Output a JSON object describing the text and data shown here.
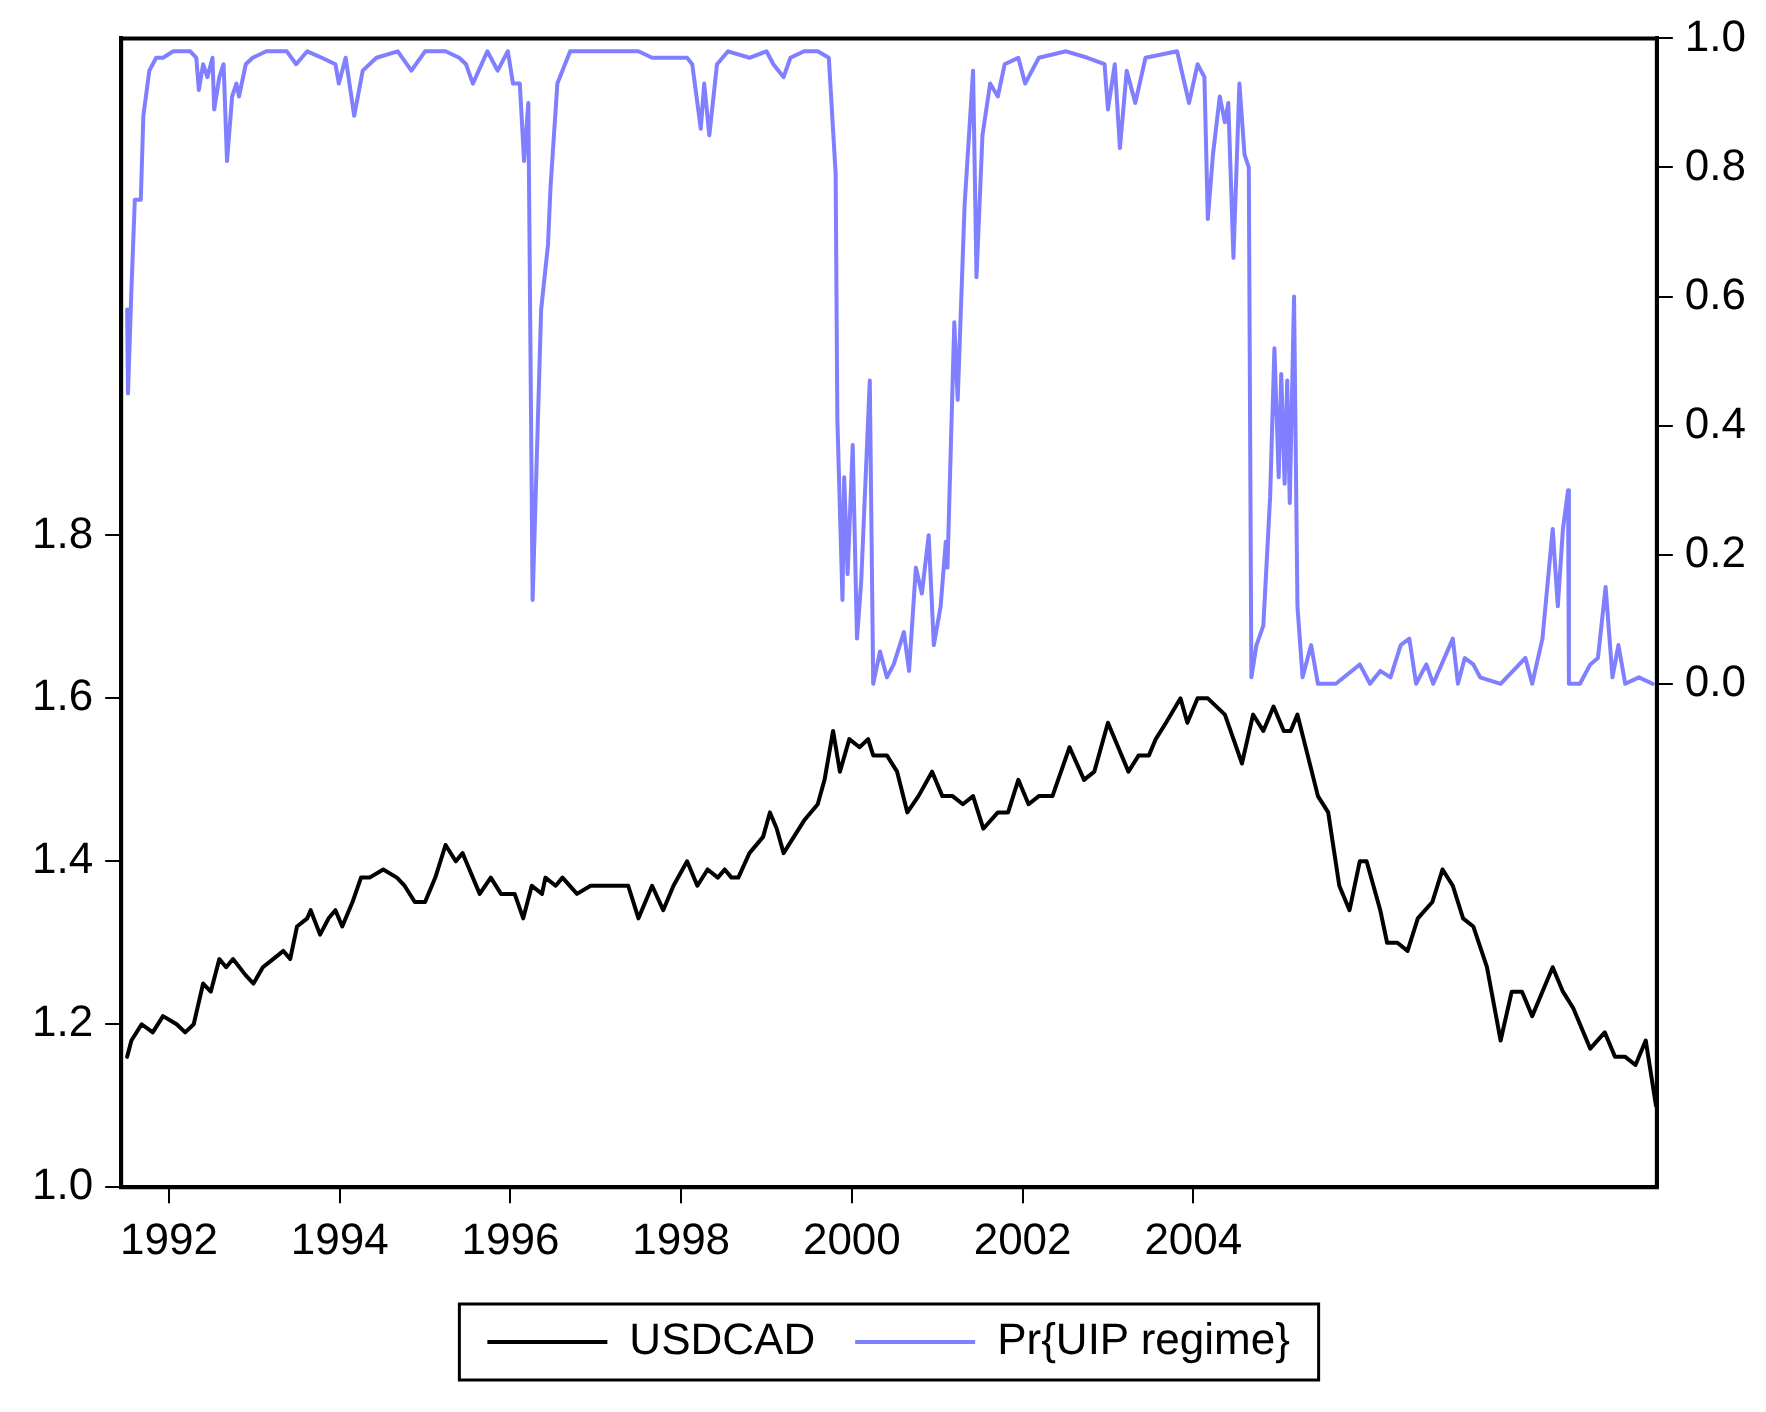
{
  "chart_data": {
    "type": "line",
    "legend": "bottom",
    "marker": "none",
    "line_style": "solid",
    "grid": false,
    "xlim": [
      1991.44,
      2009.43
    ],
    "xticks": [
      1992,
      1994,
      1996,
      1998,
      2000,
      2002,
      2004
    ],
    "ylim": [
      1.0,
      2.41
    ],
    "yticks": [
      {
        "value": 1.0,
        "label": "1.0"
      },
      {
        "value": 1.2,
        "label": "1.2"
      },
      {
        "value": 1.4,
        "label": "1.4"
      },
      {
        "value": 1.6,
        "label": "1.6"
      },
      {
        "value": 1.8,
        "label": "1.8"
      }
    ],
    "y2lim": [
      -0.78,
      1.0
    ],
    "y2ticks": [
      {
        "value": 0,
        "label": "0.0"
      },
      {
        "value": 0.2,
        "label": "0.2"
      },
      {
        "value": 0.4,
        "label": "0.4"
      },
      {
        "value": 0.6,
        "label": "0.6"
      },
      {
        "value": 0.8,
        "label": "0.8"
      },
      {
        "value": 1.0,
        "label": "1.0"
      }
    ],
    "series": [
      {
        "name": "USDCAD",
        "color": "#000000",
        "x": [
          1991.51,
          1991.56,
          1991.68,
          1991.81,
          1991.93,
          1992.09,
          1992.19,
          1992.29,
          1992.4,
          1992.49,
          1992.59,
          1992.67,
          1992.75,
          1992.9,
          1992.99,
          1993.1,
          1993.22,
          1993.34,
          1993.42,
          1993.5,
          1993.62,
          1993.66,
          1993.77,
          1993.87,
          1993.95,
          1994.03,
          1994.15,
          1994.25,
          1994.35,
          1994.51,
          1994.67,
          1994.76,
          1994.88,
          1995.0,
          1995.12,
          1995.24,
          1995.36,
          1995.44,
          1995.52,
          1995.64,
          1995.77,
          1995.89,
          1996.05,
          1996.15,
          1996.25,
          1996.37,
          1996.41,
          1996.53,
          1996.61,
          1996.78,
          1996.94,
          1997.1,
          1997.26,
          1997.38,
          1997.5,
          1997.66,
          1997.79,
          1997.91,
          1998.07,
          1998.19,
          1998.31,
          1998.43,
          1998.51,
          1998.59,
          1998.67,
          1998.8,
          1998.96,
          1999.04,
          1999.12,
          1999.2,
          1999.32,
          1999.44,
          1999.6,
          1999.68,
          1999.78,
          1999.86,
          1999.97,
          2000.09,
          2000.19,
          2000.25,
          2000.41,
          2000.53,
          2000.65,
          2000.78,
          2000.94,
          2001.06,
          2001.18,
          2001.3,
          2001.42,
          2001.54,
          2001.71,
          2001.83,
          2001.95,
          2002.07,
          2002.19,
          2002.35,
          2002.55,
          2002.72,
          2002.84,
          2003.0,
          2003.12,
          2003.24,
          2003.36,
          2003.48,
          2003.56,
          2003.68,
          2003.85,
          2003.93,
          2004.05,
          2004.17,
          2004.37,
          2004.57,
          2004.7,
          2004.82,
          2004.94,
          2005.06,
          2005.14,
          2005.22,
          2005.34,
          2005.46,
          2005.58,
          2005.71,
          2005.83,
          2005.95,
          2006.03,
          2006.19,
          2006.27,
          2006.39,
          2006.51,
          2006.63,
          2006.8,
          2006.92,
          2007.04,
          2007.16,
          2007.28,
          2007.44,
          2007.6,
          2007.73,
          2007.85,
          2007.97,
          2008.13,
          2008.21,
          2008.33,
          2008.45,
          2008.65,
          2008.82,
          2008.94,
          2009.06,
          2009.18,
          2009.3,
          2009.42
        ],
        "values": [
          1.16,
          1.18,
          1.2,
          1.19,
          1.21,
          1.2,
          1.19,
          1.2,
          1.25,
          1.24,
          1.28,
          1.27,
          1.28,
          1.26,
          1.25,
          1.27,
          1.28,
          1.29,
          1.28,
          1.32,
          1.33,
          1.34,
          1.31,
          1.33,
          1.34,
          1.32,
          1.35,
          1.38,
          1.38,
          1.39,
          1.38,
          1.37,
          1.35,
          1.35,
          1.38,
          1.42,
          1.4,
          1.41,
          1.39,
          1.36,
          1.38,
          1.36,
          1.36,
          1.33,
          1.37,
          1.36,
          1.38,
          1.37,
          1.38,
          1.36,
          1.37,
          1.37,
          1.37,
          1.37,
          1.33,
          1.37,
          1.34,
          1.37,
          1.4,
          1.37,
          1.39,
          1.38,
          1.39,
          1.38,
          1.38,
          1.41,
          1.43,
          1.46,
          1.44,
          1.41,
          1.43,
          1.45,
          1.47,
          1.5,
          1.56,
          1.51,
          1.55,
          1.54,
          1.55,
          1.53,
          1.53,
          1.51,
          1.46,
          1.48,
          1.51,
          1.48,
          1.48,
          1.47,
          1.48,
          1.44,
          1.46,
          1.46,
          1.5,
          1.47,
          1.48,
          1.48,
          1.54,
          1.5,
          1.51,
          1.57,
          1.54,
          1.51,
          1.53,
          1.53,
          1.55,
          1.57,
          1.6,
          1.57,
          1.6,
          1.6,
          1.58,
          1.52,
          1.58,
          1.56,
          1.59,
          1.56,
          1.56,
          1.58,
          1.53,
          1.48,
          1.46,
          1.37,
          1.34,
          1.4,
          1.4,
          1.34,
          1.3,
          1.3,
          1.29,
          1.33,
          1.35,
          1.39,
          1.37,
          1.33,
          1.32,
          1.27,
          1.18,
          1.24,
          1.24,
          1.21,
          1.25,
          1.27,
          1.24,
          1.22,
          1.17,
          1.19,
          1.16,
          1.16,
          1.15,
          1.18,
          1.1
        ]
      },
      {
        "name": "Pr{UIP regime}",
        "color": "#7f7fff",
        "axis": "y2",
        "x": [
          1991.51,
          1991.52,
          1991.56,
          1991.6,
          1991.67,
          1991.7,
          1991.77,
          1991.85,
          1991.93,
          1992.05,
          1992.25,
          1992.32,
          1992.35,
          1992.4,
          1992.45,
          1992.51,
          1992.53,
          1992.59,
          1992.64,
          1992.68,
          1992.74,
          1992.79,
          1992.82,
          1992.9,
          1992.98,
          1993.14,
          1993.38,
          1993.49,
          1993.62,
          1993.79,
          1993.95,
          1993.99,
          1994.07,
          1994.17,
          1994.27,
          1994.43,
          1994.68,
          1994.84,
          1995.0,
          1995.24,
          1995.4,
          1995.48,
          1995.56,
          1995.73,
          1995.85,
          1995.97,
          1996.03,
          1996.11,
          1996.16,
          1996.21,
          1996.26,
          1996.36,
          1996.44,
          1996.47,
          1996.55,
          1996.7,
          1996.86,
          1997.5,
          1997.66,
          1997.83,
          1998.07,
          1998.13,
          1998.23,
          1998.27,
          1998.33,
          1998.42,
          1998.55,
          1998.8,
          1999.0,
          1999.08,
          1999.2,
          1999.28,
          1999.44,
          1999.6,
          1999.73,
          1999.81,
          1999.83,
          1999.89,
          1999.91,
          1999.95,
          2000.01,
          2000.06,
          2000.11,
          2000.21,
          2000.25,
          2000.33,
          2000.41,
          2000.49,
          2000.61,
          2000.67,
          2000.75,
          2000.82,
          2000.9,
          2000.96,
          2001.04,
          2001.1,
          2001.12,
          2001.2,
          2001.24,
          2001.32,
          2001.42,
          2001.46,
          2001.53,
          2001.62,
          2001.71,
          2001.79,
          2001.95,
          2002.03,
          2002.19,
          2002.51,
          2002.76,
          2002.96,
          2003.0,
          2003.08,
          2003.14,
          2003.22,
          2003.32,
          2003.44,
          2003.81,
          2003.95,
          2004.05,
          2004.13,
          2004.17,
          2004.23,
          2004.31,
          2004.37,
          2004.41,
          2004.47,
          2004.54,
          2004.6,
          2004.65,
          2004.68,
          2004.74,
          2004.82,
          2004.9,
          2004.95,
          2005.0,
          2005.03,
          2005.07,
          2005.1,
          2005.13,
          2005.18,
          2005.22,
          2005.28,
          2005.38,
          2005.46,
          2005.67,
          2005.95,
          2006.07,
          2006.19,
          2006.31,
          2006.43,
          2006.53,
          2006.61,
          2006.73,
          2006.81,
          2007.04,
          2007.1,
          2007.18,
          2007.28,
          2007.36,
          2007.6,
          2007.89,
          2007.97,
          2008.09,
          2008.21,
          2008.27,
          2008.33,
          2008.39,
          2008.4,
          2008.53,
          2008.65,
          2008.74,
          2008.83,
          2008.91,
          2008.98,
          2009.06,
          2009.22,
          2009.38
        ],
        "values": [
          0.58,
          0.45,
          0.61,
          0.75,
          0.75,
          0.88,
          0.95,
          0.97,
          0.97,
          0.98,
          0.98,
          0.97,
          0.92,
          0.96,
          0.94,
          0.97,
          0.89,
          0.94,
          0.96,
          0.81,
          0.91,
          0.93,
          0.91,
          0.96,
          0.97,
          0.98,
          0.98,
          0.96,
          0.98,
          0.97,
          0.96,
          0.93,
          0.97,
          0.88,
          0.95,
          0.97,
          0.98,
          0.95,
          0.98,
          0.98,
          0.97,
          0.96,
          0.93,
          0.98,
          0.95,
          0.98,
          0.93,
          0.93,
          0.81,
          0.9,
          0.13,
          0.58,
          0.68,
          0.77,
          0.93,
          0.98,
          0.98,
          0.98,
          0.97,
          0.97,
          0.97,
          0.96,
          0.86,
          0.93,
          0.85,
          0.96,
          0.98,
          0.97,
          0.98,
          0.96,
          0.94,
          0.97,
          0.98,
          0.98,
          0.97,
          0.79,
          0.41,
          0.13,
          0.32,
          0.17,
          0.37,
          0.07,
          0.16,
          0.47,
          0.0,
          0.05,
          0.01,
          0.03,
          0.08,
          0.02,
          0.18,
          0.14,
          0.23,
          0.06,
          0.12,
          0.22,
          0.18,
          0.56,
          0.44,
          0.74,
          0.95,
          0.63,
          0.85,
          0.93,
          0.91,
          0.96,
          0.97,
          0.93,
          0.97,
          0.98,
          0.97,
          0.96,
          0.89,
          0.96,
          0.83,
          0.95,
          0.9,
          0.97,
          0.98,
          0.9,
          0.96,
          0.94,
          0.72,
          0.82,
          0.91,
          0.87,
          0.9,
          0.66,
          0.93,
          0.82,
          0.8,
          0.01,
          0.06,
          0.09,
          0.29,
          0.52,
          0.32,
          0.48,
          0.31,
          0.47,
          0.28,
          0.6,
          0.12,
          0.01,
          0.06,
          0.0,
          0.0,
          0.03,
          0.0,
          0.02,
          0.01,
          0.06,
          0.07,
          0.0,
          0.03,
          0.0,
          0.07,
          0.0,
          0.04,
          0.03,
          0.01,
          0.0,
          0.04,
          0.0,
          0.07,
          0.24,
          0.12,
          0.24,
          0.3,
          0.0,
          0.0,
          0.03,
          0.04,
          0.15,
          0.01,
          0.06,
          0.0,
          0.01,
          0.0
        ]
      }
    ]
  }
}
